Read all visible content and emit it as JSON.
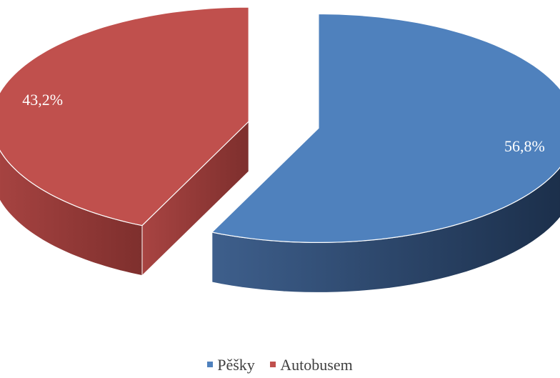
{
  "chart_data": {
    "type": "pie",
    "title": "",
    "categories": [
      "Pěšky",
      "Autobusem"
    ],
    "values": [
      56.8,
      43.2
    ],
    "labels": [
      "56,8%",
      "43,2%"
    ],
    "colors": [
      "#4f81bd",
      "#c0504d"
    ],
    "style": "3d-exploded",
    "legend_position": "bottom"
  }
}
